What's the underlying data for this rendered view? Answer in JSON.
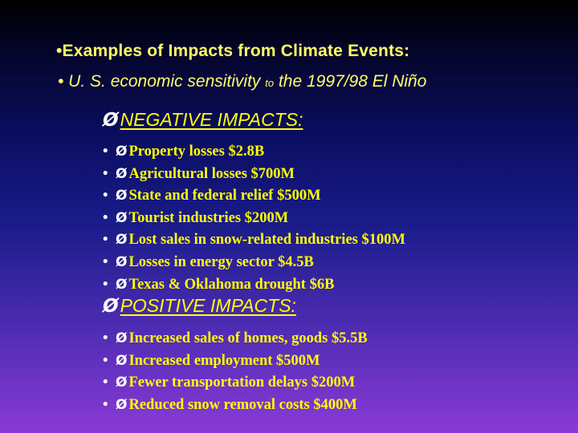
{
  "title": {
    "line1": "•Examples of Impacts from Climate Events:",
    "line2_a": "• U. S. economic sensitivity ",
    "line2_small": "to",
    "line2_b": " the 1997/98 El Niño"
  },
  "negative": {
    "heading": "NEGATIVE IMPACTS:",
    "items": [
      "Property losses  $2.8B",
      "Agricultural losses  $700M",
      "State and federal relief  $500M",
      "Tourist industries  $200M",
      "Lost sales in snow-related industries  $100M",
      "Losses in energy sector  $4.5B",
      "Texas & Oklahoma drought  $6B"
    ]
  },
  "positive": {
    "heading": "POSITIVE IMPACTS:",
    "items": [
      "Increased sales of homes, goods  $5.5B",
      "Increased employment  $500M",
      "Fewer transportation delays  $200M",
      "Reduced snow removal costs  $400M"
    ]
  },
  "glyphs": {
    "bullet": "•",
    "arrow": "Ø"
  },
  "colors": {
    "heading": "#ffff00",
    "text": "#ffff00",
    "marker": "#ffffff"
  }
}
